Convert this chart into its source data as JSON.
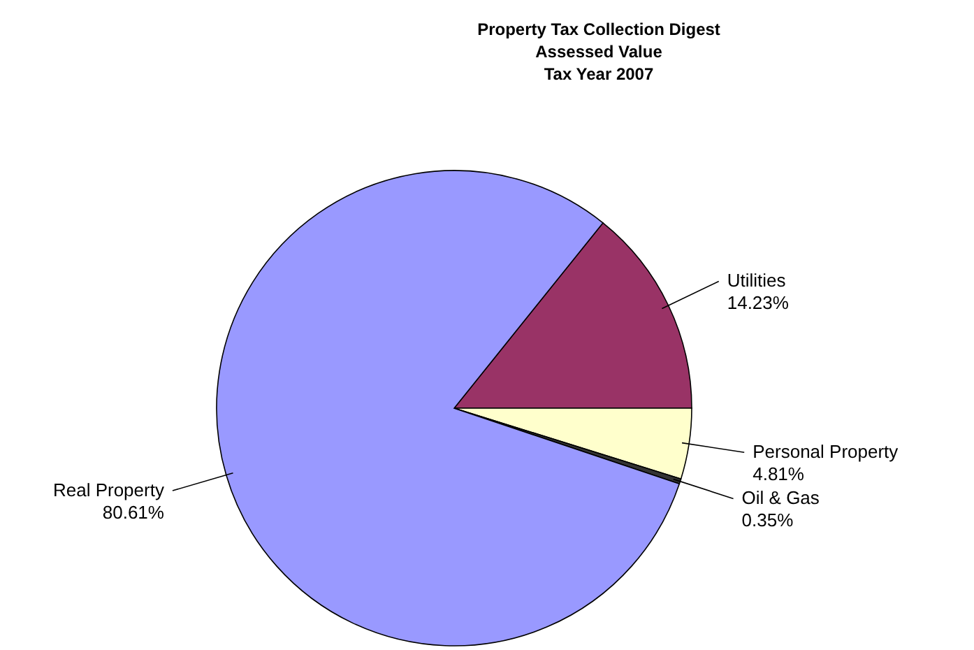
{
  "chart_data": {
    "type": "pie",
    "title": "Property Tax Collection Digest\nAssessed Value\nTax Year 2007",
    "categories": [
      "Utilities",
      "Personal Property",
      "Oil & Gas",
      "Real Property"
    ],
    "values": [
      14.23,
      4.81,
      0.35,
      80.61
    ],
    "colors": [
      "#993366",
      "#ffffcc",
      "#333333",
      "#9999ff"
    ],
    "value_labels": [
      "14.23%",
      "4.81%",
      "0.35%",
      "80.61%"
    ],
    "legend": false
  }
}
